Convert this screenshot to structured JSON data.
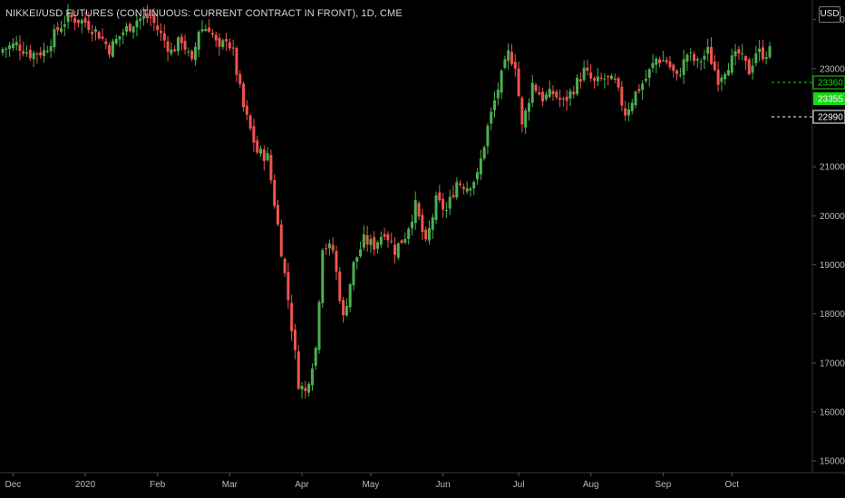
{
  "title": "NIKKEI/USD FUTURES (CONTINUOUS: CURRENT CONTRACT IN FRONT), 1D, CME",
  "currency_button": "USD",
  "colors": {
    "up": "#4caf50",
    "down": "#ef5350",
    "highlight": "#16d916",
    "axis": "#b9b9b9"
  },
  "chart_data": {
    "type": "candlestick",
    "title": "NIKKEI/USD FUTURES (CONTINUOUS: CURRENT CONTRACT IN FRONT), 1D, CME",
    "ylim": [
      14800,
      24400
    ],
    "y_ticks": [
      15000,
      16000,
      17000,
      18000,
      19000,
      20000,
      21000,
      22000,
      23000,
      24000
    ],
    "x_ticks": [
      "Dec",
      "2020",
      "Feb",
      "Mar",
      "Apr",
      "May",
      "Jun",
      "Jul",
      "Aug",
      "Sep",
      "Oct"
    ],
    "price_labels": [
      {
        "label": "23360",
        "value": 23360,
        "style": "outline-green"
      },
      {
        "label": "23355",
        "value": 23355,
        "style": "filled-green"
      },
      {
        "label": "22990",
        "value": 22990,
        "style": "outline-white"
      }
    ],
    "anchors": [
      [
        0,
        23400
      ],
      [
        4,
        23500
      ],
      [
        8,
        23300
      ],
      [
        12,
        23350
      ],
      [
        16,
        23800
      ],
      [
        19,
        24050
      ],
      [
        24,
        23950
      ],
      [
        28,
        23700
      ],
      [
        31,
        23400
      ],
      [
        35,
        23750
      ],
      [
        39,
        24000
      ],
      [
        43,
        24050
      ],
      [
        45,
        23800
      ],
      [
        49,
        23350
      ],
      [
        52,
        23600
      ],
      [
        55,
        23100
      ],
      [
        57,
        23800
      ],
      [
        60,
        23850
      ],
      [
        63,
        23350
      ],
      [
        65,
        23650
      ],
      [
        67,
        23300
      ],
      [
        70,
        22200
      ],
      [
        74,
        21300
      ],
      [
        77,
        21200
      ],
      [
        80,
        19800
      ],
      [
        83,
        18300
      ],
      [
        86,
        16600
      ],
      [
        88,
        16400
      ],
      [
        91,
        17300
      ],
      [
        93,
        19400
      ],
      [
        96,
        19300
      ],
      [
        99,
        17900
      ],
      [
        102,
        19000
      ],
      [
        105,
        19500
      ],
      [
        108,
        19400
      ],
      [
        111,
        19700
      ],
      [
        114,
        19300
      ],
      [
        117,
        19600
      ],
      [
        120,
        20200
      ],
      [
        123,
        19400
      ],
      [
        126,
        20300
      ],
      [
        129,
        20100
      ],
      [
        132,
        20700
      ],
      [
        135,
        20600
      ],
      [
        138,
        20800
      ],
      [
        141,
        21800
      ],
      [
        144,
        22600
      ],
      [
        147,
        23300
      ],
      [
        149,
        23100
      ],
      [
        151,
        21800
      ],
      [
        154,
        22700
      ],
      [
        157,
        22400
      ],
      [
        160,
        22500
      ],
      [
        163,
        22300
      ],
      [
        166,
        22600
      ],
      [
        169,
        22950
      ],
      [
        172,
        22700
      ],
      [
        175,
        22800
      ],
      [
        178,
        22700
      ],
      [
        181,
        22100
      ],
      [
        184,
        22500
      ],
      [
        187,
        22800
      ],
      [
        190,
        23200
      ],
      [
        193,
        23150
      ],
      [
        196,
        22800
      ],
      [
        199,
        23300
      ],
      [
        202,
        23100
      ],
      [
        205,
        23350
      ],
      [
        208,
        22800
      ],
      [
        211,
        23100
      ],
      [
        214,
        23300
      ],
      [
        217,
        22950
      ],
      [
        219,
        23350
      ],
      [
        221,
        23300
      ],
      [
        223,
        23355
      ]
    ]
  }
}
